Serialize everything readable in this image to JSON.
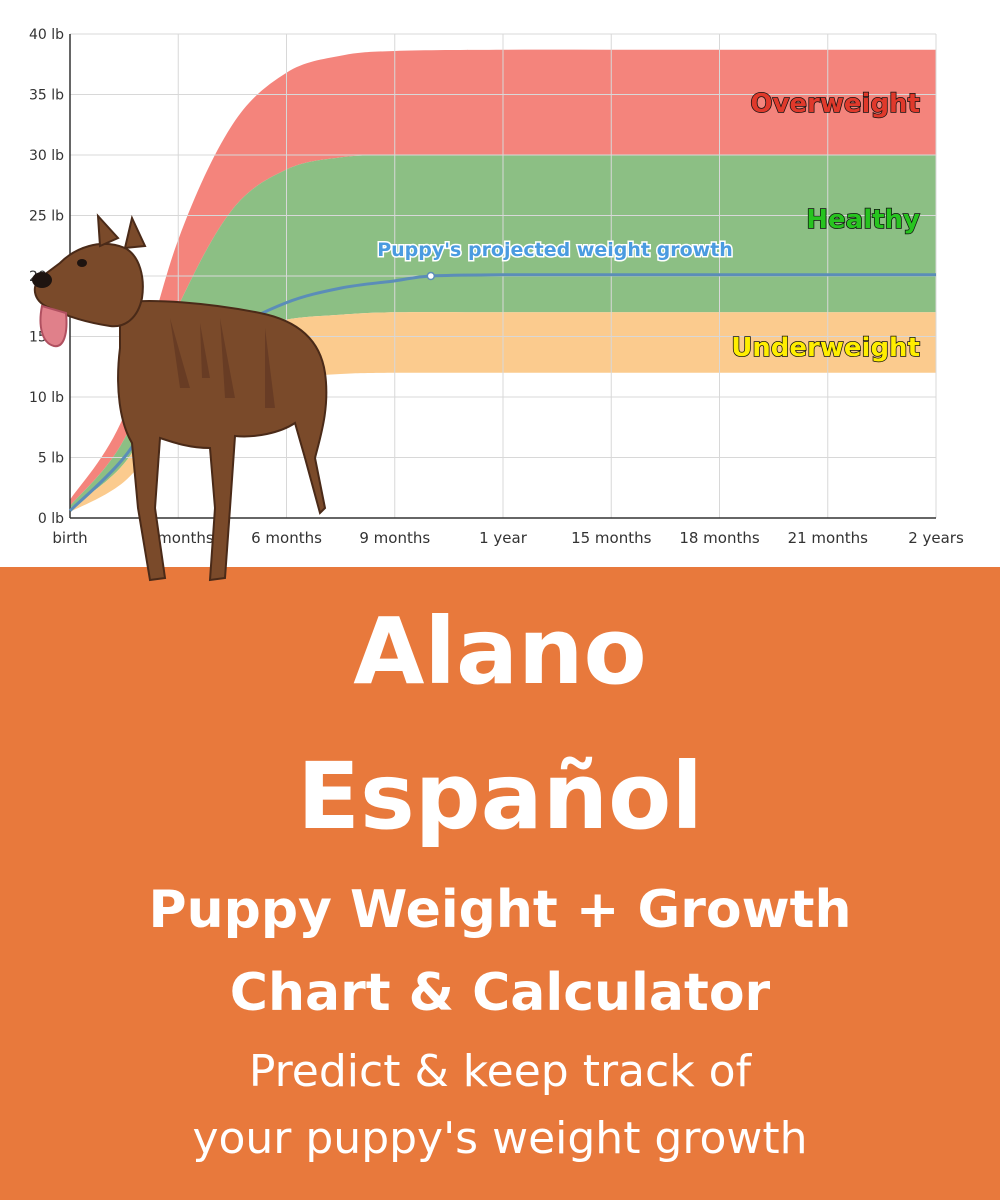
{
  "chart_data": {
    "type": "area",
    "x_ticks": [
      "birth",
      "3 months",
      "6 months",
      "9 months",
      "1 year",
      "15 months",
      "18 months",
      "21 months",
      "2 years"
    ],
    "y_ticks": [
      "0 lb",
      "5 lb",
      "10 lb",
      "15 lb",
      "20 lb",
      "25 lb",
      "30 lb",
      "35 lb",
      "40 lb"
    ],
    "xlim_months": [
      0,
      24
    ],
    "ylim": [
      0,
      40
    ],
    "unit": "lb",
    "grid": true,
    "bands": [
      {
        "name": "Overweight",
        "color": "#F4847C",
        "lower": [
          1.0,
          6.5,
          17.5,
          25.5,
          28.8,
          29.8,
          30.0,
          30.0,
          30.0,
          30.0,
          30.0
        ],
        "upper": [
          1.5,
          8.5,
          23.0,
          32.5,
          36.8,
          38.2,
          38.6,
          38.7,
          38.7,
          38.7,
          38.7
        ]
      },
      {
        "name": "Healthy",
        "color": "#8CBF84",
        "lower": [
          0.8,
          4.5,
          11.5,
          15.2,
          16.4,
          16.8,
          17.0,
          17.0,
          17.0,
          17.0,
          17.0
        ],
        "upper": [
          1.0,
          6.5,
          17.5,
          25.5,
          28.8,
          29.8,
          30.0,
          30.0,
          30.0,
          30.0,
          30.0
        ]
      },
      {
        "name": "Underweight",
        "color": "#FBCB8E",
        "lower": [
          0.5,
          3.0,
          8.0,
          10.5,
          11.5,
          11.9,
          12.0,
          12.0,
          12.0,
          12.0,
          12.0
        ],
        "upper": [
          0.8,
          4.5,
          11.5,
          15.2,
          16.4,
          16.8,
          17.0,
          17.0,
          17.0,
          17.0,
          17.0
        ]
      }
    ],
    "band_months": [
      0,
      1.5,
      3,
      4.5,
      6,
      7.5,
      9,
      12,
      15,
      18,
      24
    ],
    "series": [
      {
        "name": "Puppy's projected weight growth",
        "color": "#5B8DB8",
        "x": [
          0,
          1.5,
          3,
          4.5,
          6,
          7.5,
          9,
          10,
          12,
          15,
          18,
          24
        ],
        "y": [
          0.6,
          5.0,
          11.5,
          15.5,
          17.8,
          19.0,
          19.6,
          20.0,
          20.1,
          20.1,
          20.1,
          20.1
        ],
        "marker_month": 10
      }
    ],
    "annotations": {
      "overweight": {
        "text": "Overweight",
        "color": "#E0392B"
      },
      "healthy": {
        "text": "Healthy",
        "color": "#27C41F"
      },
      "underweight": {
        "text": "Underweight",
        "color": "#FFEE00"
      },
      "growth": {
        "text": "Puppy's projected weight growth",
        "color": "#4A9BE0"
      }
    }
  },
  "banner": {
    "breed_line_1": "Alano",
    "breed_line_2": "Español",
    "heading_line_1": "Puppy Weight + Growth",
    "heading_line_2": "Chart & Calculator",
    "sub_line_1": "Predict & keep track of",
    "sub_line_2": "your puppy's weight growth",
    "background": "#E8793C"
  },
  "dog_image": {
    "icon": "brindle-dog-photo"
  }
}
